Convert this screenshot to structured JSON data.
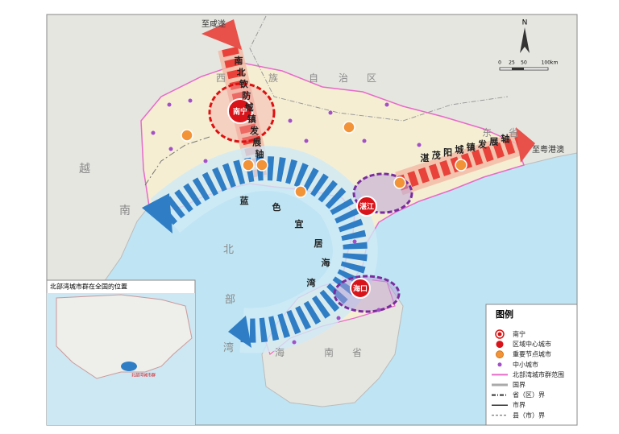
{
  "map": {
    "destinations": {
      "north": "至咸遂",
      "east": "至粤港澳"
    },
    "axes": {
      "north_south": "南北钦防城镇发展轴",
      "east": "湛茂阳城镇发展轴",
      "bay": "蓝色宜居海湾"
    },
    "cities": {
      "nanning": "南宁",
      "zhanjiang": "湛江",
      "haikou": "海口"
    },
    "regions": {
      "guangxi": "西族自治区",
      "guangdong": "东省",
      "vietnam": "越南",
      "gulf": "北部湾",
      "hainan": "海南省"
    },
    "compass": "N",
    "scale": [
      "0",
      "25",
      "50",
      "100km"
    ]
  },
  "inset": {
    "title": "北部湾城市群在全国的位置",
    "label": "北部湾城市群"
  },
  "legend": {
    "title": "图例",
    "items": [
      "南宁",
      "区域中心城市",
      "重要节点城市",
      "中小城市",
      "北部湾城市群范围",
      "国界",
      "省（区）界",
      "市界",
      "县（市）界"
    ]
  }
}
